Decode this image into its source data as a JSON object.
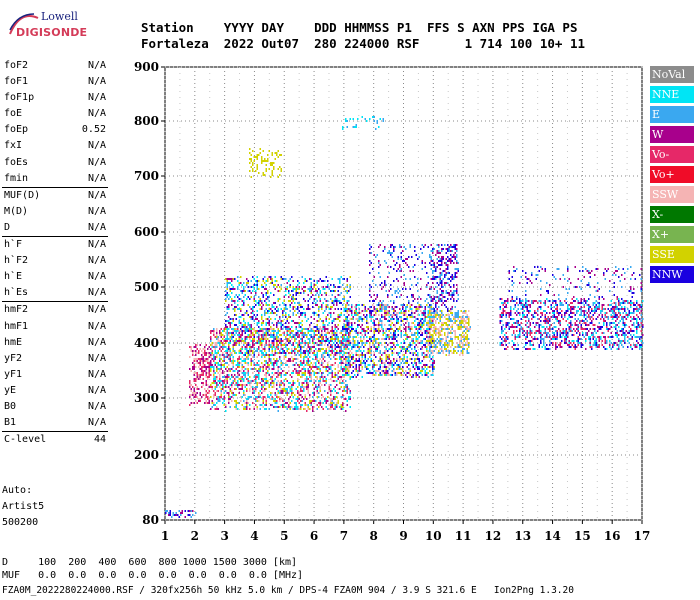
{
  "logo": {
    "line1": "Lowell",
    "line2": "DIGISONDE"
  },
  "header": {
    "row1": "Station    YYYY DAY    DDD HHMMSS P1  FFS S AXN PPS IGA PS",
    "row2": "Fortaleza  2022 Out07  280 224000 RSF      1 714 100 10+ 11"
  },
  "params": {
    "groups": [
      [
        {
          "k": "foF2",
          "v": "N/A"
        },
        {
          "k": "foF1",
          "v": "N/A"
        },
        {
          "k": "foF1p",
          "v": "N/A"
        },
        {
          "k": "foE",
          "v": "N/A"
        },
        {
          "k": "foEp",
          "v": "0.52"
        },
        {
          "k": "fxI",
          "v": "N/A"
        },
        {
          "k": "foEs",
          "v": "N/A"
        },
        {
          "k": "fmin",
          "v": "N/A"
        }
      ],
      [
        {
          "k": "MUF(D)",
          "v": "N/A"
        },
        {
          "k": "M(D)",
          "v": "N/A"
        },
        {
          "k": "D",
          "v": "N/A"
        }
      ],
      [
        {
          "k": "h`F",
          "v": "N/A"
        },
        {
          "k": "h`F2",
          "v": "N/A"
        },
        {
          "k": "h`E",
          "v": "N/A"
        },
        {
          "k": "h`Es",
          "v": "N/A"
        }
      ],
      [
        {
          "k": "hmF2",
          "v": "N/A"
        },
        {
          "k": "hmF1",
          "v": "N/A"
        },
        {
          "k": "hmE",
          "v": "N/A"
        },
        {
          "k": "yF2",
          "v": "N/A"
        },
        {
          "k": "yF1",
          "v": "N/A"
        },
        {
          "k": "yE",
          "v": "N/A"
        },
        {
          "k": "B0",
          "v": "N/A"
        },
        {
          "k": "B1",
          "v": "N/A"
        }
      ],
      [
        {
          "k": "C-level",
          "v": "44"
        }
      ]
    ],
    "auto": [
      "Auto:",
      "Artist5",
      "500200"
    ]
  },
  "legend": [
    {
      "label": "NoVal",
      "color": "#8c8c8c"
    },
    {
      "label": "NNE",
      "color": "#00e5f5"
    },
    {
      "label": "E",
      "color": "#3aa8f0"
    },
    {
      "label": "W",
      "color": "#a8008c"
    },
    {
      "label": "Vo-",
      "color": "#e62868"
    },
    {
      "label": "Vo+",
      "color": "#f00c28"
    },
    {
      "label": "SSW",
      "color": "#f5b4b4"
    },
    {
      "label": "X-",
      "color": "#007800"
    },
    {
      "label": "X+",
      "color": "#78b450"
    },
    {
      "label": "SSE",
      "color": "#d2d200"
    },
    {
      "label": "NNW",
      "color": "#1a00e0"
    }
  ],
  "bottom": {
    "row1": "D     100  200  400  600  800 1000 1500 3000 [km]",
    "row2": "MUF   0.0  0.0  0.0  0.0  0.0  0.0  0.0  0.0 [MHz]"
  },
  "footer": "FZA0M_2022280224000.RSF / 320fx256h 50 kHz 5.0 km / DPS-4 FZA0M 904 / 3.9 S 321.6 E   Ion2Png 1.3.20",
  "chart_data": {
    "type": "scatter",
    "xlim": [
      1,
      17
    ],
    "ylim": [
      80,
      900
    ],
    "xticks": [
      "1",
      "2",
      "3",
      "4",
      "5",
      "6",
      "7",
      "8",
      "9",
      "10",
      "11",
      "12",
      "13",
      "14",
      "15",
      "16",
      "17"
    ],
    "yticks": [
      "80",
      "200",
      "300",
      "400",
      "500",
      "600",
      "700",
      "800",
      "900"
    ],
    "grid": true,
    "clusters": [
      {
        "x": [
          1.8,
          2.5
        ],
        "y": [
          290,
          400
        ],
        "n": 260,
        "colors": [
          "#f5b4b4",
          "#e62868",
          "#a8008c"
        ]
      },
      {
        "x": [
          2.5,
          7.2
        ],
        "y": [
          280,
          430
        ],
        "n": 2400,
        "colors": [
          "#f5b4b4",
          "#a8008c",
          "#d2d200",
          "#e62868",
          "#3aa8f0",
          "#00e5f5"
        ]
      },
      {
        "x": [
          3.0,
          7.2
        ],
        "y": [
          380,
          520
        ],
        "n": 1200,
        "colors": [
          "#3aa8f0",
          "#a8008c",
          "#1a00e0",
          "#00e5f5",
          "#d2d200"
        ]
      },
      {
        "x": [
          7.0,
          10.0
        ],
        "y": [
          340,
          470
        ],
        "n": 1500,
        "colors": [
          "#f5b4b4",
          "#d2d200",
          "#3aa8f0",
          "#00e5f5",
          "#a8008c",
          "#1a00e0"
        ]
      },
      {
        "x": [
          7.8,
          10.0
        ],
        "y": [
          460,
          580
        ],
        "n": 250,
        "colors": [
          "#1a00e0",
          "#a8008c",
          "#3aa8f0"
        ]
      },
      {
        "x": [
          9.8,
          11.2
        ],
        "y": [
          380,
          460
        ],
        "n": 500,
        "colors": [
          "#f5b4b4",
          "#d2d200",
          "#3aa8f0"
        ]
      },
      {
        "x": [
          9.9,
          10.8
        ],
        "y": [
          460,
          580
        ],
        "n": 300,
        "colors": [
          "#1a00e0",
          "#a8008c",
          "#3aa8f0"
        ]
      },
      {
        "x": [
          12.2,
          17.0
        ],
        "y": [
          390,
          480
        ],
        "n": 1300,
        "colors": [
          "#1a00e0",
          "#a8008c",
          "#3aa8f0",
          "#00e5f5",
          "#e62868"
        ]
      },
      {
        "x": [
          12.5,
          17.0
        ],
        "y": [
          480,
          540
        ],
        "n": 160,
        "colors": [
          "#1a00e0",
          "#a8008c",
          "#3aa8f0"
        ]
      },
      {
        "x": [
          3.8,
          4.9
        ],
        "y": [
          700,
          750
        ],
        "n": 90,
        "colors": [
          "#d2d200"
        ]
      },
      {
        "x": [
          6.9,
          8.4
        ],
        "y": [
          785,
          810
        ],
        "n": 30,
        "colors": [
          "#00e5f5",
          "#3aa8f0"
        ]
      },
      {
        "x": [
          1.0,
          2.0
        ],
        "y": [
          86,
          100
        ],
        "n": 40,
        "colors": [
          "#1a00e0",
          "#a8008c",
          "#3aa8f0"
        ]
      }
    ]
  }
}
